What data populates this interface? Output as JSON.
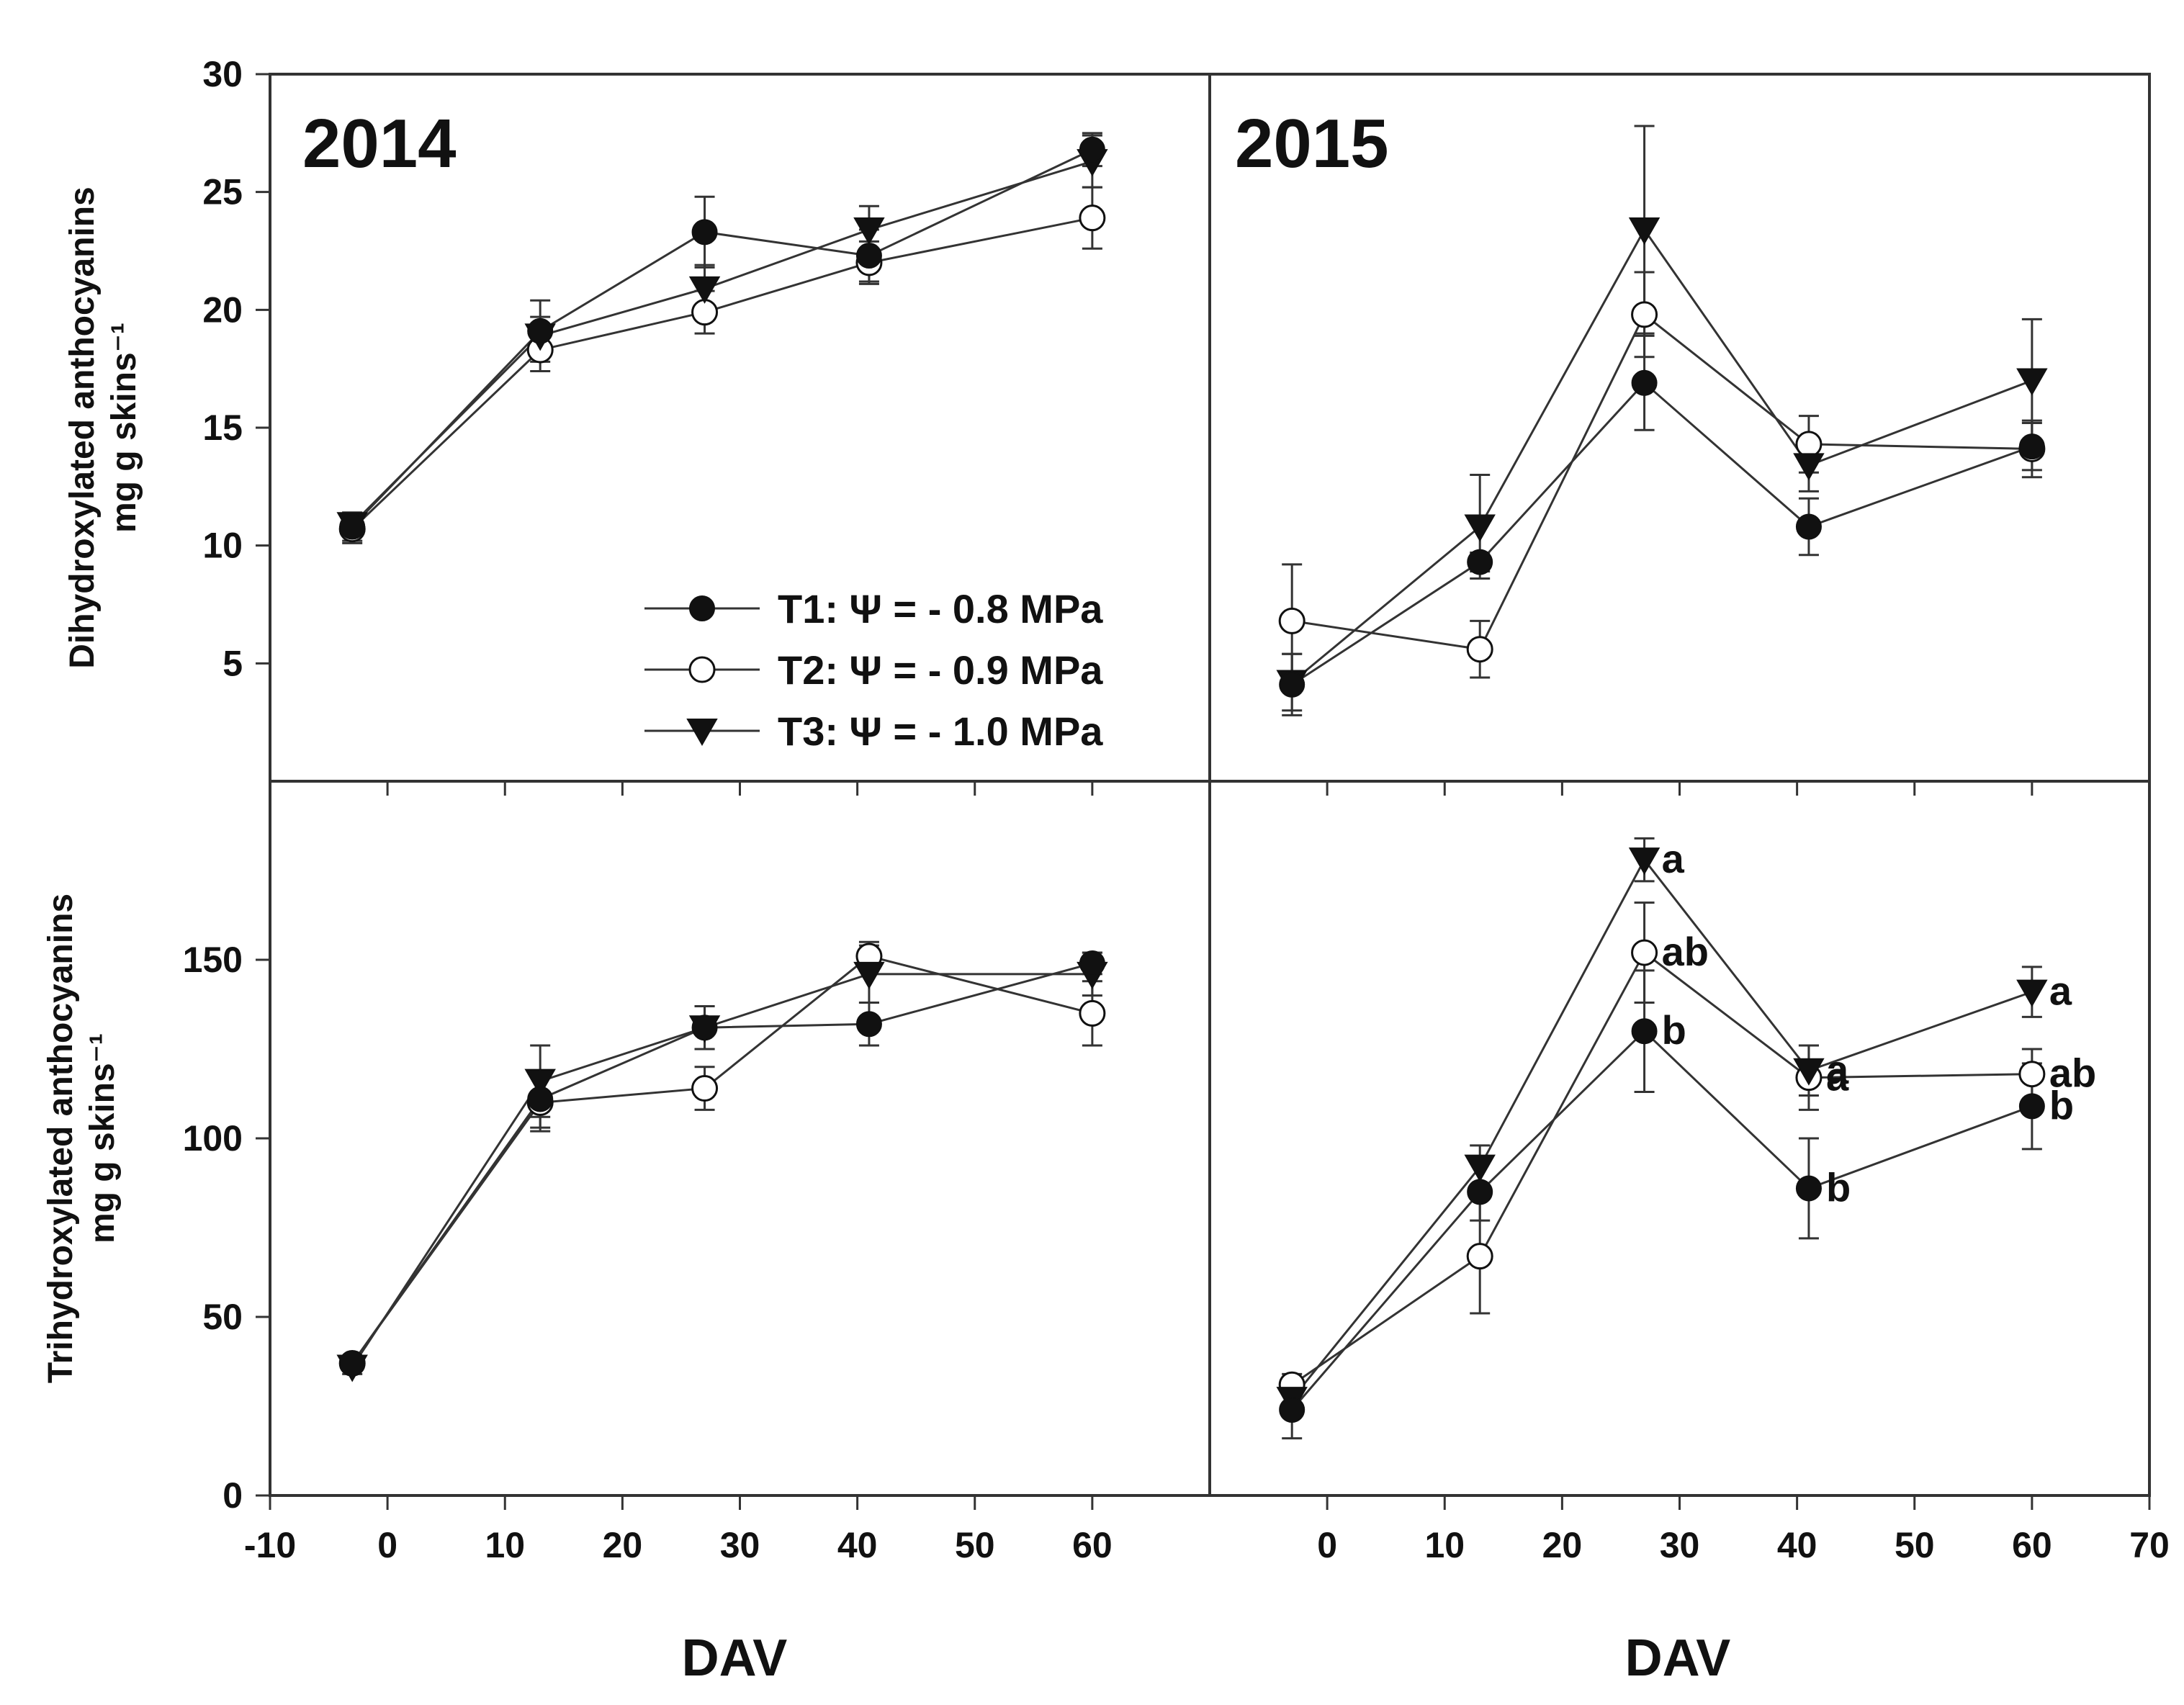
{
  "figure": {
    "x_axis_label": "DAV",
    "legend": [
      {
        "series_id": "T1",
        "label": "T1: Ψ = - 0.8 MPa",
        "marker": "filled-circle"
      },
      {
        "series_id": "T2",
        "label": "T2: Ψ = - 0.9 MPa",
        "marker": "open-circle"
      },
      {
        "series_id": "T3",
        "label": "T3: Ψ = - 1.0 MPa",
        "marker": "filled-triangle-down"
      }
    ],
    "colors": {
      "axes": "#333333",
      "line": "#333333",
      "marker_fill": "#111111",
      "open_fill": "#ffffff"
    }
  },
  "chart_data": [
    {
      "id": "di-2014",
      "type": "line",
      "title": "2014",
      "ylabel_line1": "Dihydroxylated anthocyanins",
      "ylabel_line2": "mg g skins⁻¹",
      "xlabel": "DAV",
      "xlim": [
        -10,
        70
      ],
      "ylim": [
        0,
        30
      ],
      "xticks": [
        -10,
        0,
        10,
        20,
        30,
        40,
        50,
        60
      ],
      "yticks": [
        5,
        10,
        15,
        20,
        25,
        30
      ],
      "x": [
        -3,
        13,
        27,
        41,
        60
      ],
      "series": [
        {
          "name": "T1",
          "values": [
            10.8,
            19.1,
            23.3,
            22.3,
            26.8
          ],
          "err": [
            0.6,
            1.3,
            1.5,
            1.1,
            0.7
          ]
        },
        {
          "name": "T2",
          "values": [
            10.7,
            18.3,
            19.9,
            22.0,
            23.9
          ],
          "err": [
            0.6,
            0.9,
            0.9,
            0.9,
            1.3
          ]
        },
        {
          "name": "T3",
          "values": [
            10.9,
            18.9,
            20.9,
            23.4,
            26.3
          ],
          "err": [
            0.5,
            0.8,
            1.0,
            1.0,
            1.1
          ]
        }
      ]
    },
    {
      "id": "di-2015",
      "type": "line",
      "title": "2015",
      "xlabel": "DAV",
      "xlim": [
        -10,
        70
      ],
      "ylim": [
        0,
        30
      ],
      "xticks": [
        0,
        10,
        20,
        30,
        40,
        50,
        60,
        70
      ],
      "yticks": [],
      "x": [
        -3,
        13,
        27,
        41,
        60
      ],
      "series": [
        {
          "name": "T1",
          "values": [
            4.1,
            9.3,
            16.9,
            10.8,
            14.2
          ],
          "err": [
            1.3,
            0.4,
            2.0,
            1.2,
            1.0
          ]
        },
        {
          "name": "T2",
          "values": [
            6.8,
            5.6,
            19.8,
            14.3,
            14.1
          ],
          "err": [
            2.4,
            1.2,
            1.8,
            1.2,
            1.2
          ]
        },
        {
          "name": "T3",
          "values": [
            4.2,
            10.8,
            23.4,
            13.4,
            17.0
          ],
          "err": [
            1.2,
            2.2,
            4.4,
            1.1,
            2.6
          ]
        }
      ]
    },
    {
      "id": "tri-2014",
      "type": "line",
      "ylabel_line1": "Trihydroxylated anthocyanins",
      "ylabel_line2": "mg g skins⁻¹",
      "xlabel": "DAV",
      "xlim": [
        -10,
        70
      ],
      "ylim": [
        0,
        200
      ],
      "xticks": [
        -10,
        0,
        10,
        20,
        30,
        40,
        50,
        60
      ],
      "yticks": [
        0,
        50,
        100,
        150
      ],
      "x": [
        -3,
        13,
        27,
        41,
        60
      ],
      "series": [
        {
          "name": "T1",
          "values": [
            37,
            111,
            131,
            132,
            149
          ],
          "err": [
            2,
            8,
            6,
            6,
            3
          ]
        },
        {
          "name": "T2",
          "values": [
            37,
            110,
            114,
            151,
            135
          ],
          "err": [
            2,
            8,
            6,
            4,
            9
          ]
        },
        {
          "name": "T3",
          "values": [
            36,
            116,
            131,
            146,
            146
          ],
          "err": [
            2,
            10,
            6,
            8,
            6
          ]
        }
      ]
    },
    {
      "id": "tri-2015",
      "type": "line",
      "xlabel": "DAV",
      "xlim": [
        -10,
        70
      ],
      "ylim": [
        0,
        200
      ],
      "xticks": [
        0,
        10,
        20,
        30,
        40,
        50,
        60,
        70
      ],
      "yticks": [],
      "x": [
        -3,
        13,
        27,
        41,
        60
      ],
      "series": [
        {
          "name": "T1",
          "values": [
            24,
            85,
            130,
            86,
            109
          ],
          "err": [
            8,
            8,
            17,
            14,
            12
          ]
        },
        {
          "name": "T2",
          "values": [
            31,
            67,
            152,
            117,
            118
          ],
          "err": [
            3,
            16,
            14,
            9,
            7
          ]
        },
        {
          "name": "T3",
          "values": [
            27,
            92,
            178,
            119,
            141
          ],
          "err": [
            4,
            6,
            6,
            7,
            7
          ]
        }
      ],
      "annotations": [
        {
          "series": "T3",
          "point": 2,
          "text": "a"
        },
        {
          "series": "T2",
          "point": 2,
          "text": "ab"
        },
        {
          "series": "T1",
          "point": 2,
          "text": "b"
        },
        {
          "series": "T3",
          "point": 3,
          "text": "a"
        },
        {
          "series": "T2",
          "point": 3,
          "text": "a"
        },
        {
          "series": "T1",
          "point": 3,
          "text": "b"
        },
        {
          "series": "T3",
          "point": 4,
          "text": "a"
        },
        {
          "series": "T2",
          "point": 4,
          "text": "ab"
        },
        {
          "series": "T1",
          "point": 4,
          "text": "b"
        }
      ]
    }
  ]
}
